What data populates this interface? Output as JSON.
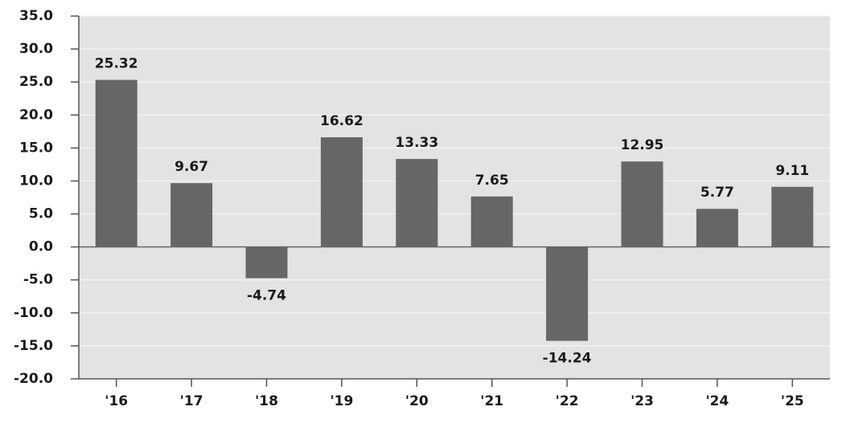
{
  "chart_data": {
    "type": "bar",
    "categories": [
      "'16",
      "'17",
      "'18",
      "'19",
      "'20",
      "'21",
      "'22",
      "'23",
      "'24",
      "'25"
    ],
    "values": [
      25.32,
      9.67,
      -4.74,
      16.62,
      13.33,
      7.65,
      -14.24,
      12.95,
      5.77,
      9.11
    ],
    "color": "#666666",
    "ylim": [
      -20,
      35
    ],
    "yticks": [
      {
        "value": -20,
        "label": "-20.0"
      },
      {
        "value": -15,
        "label": "-15.0"
      },
      {
        "value": -10,
        "label": "-10.0"
      },
      {
        "value": -5,
        "label": "-5.0"
      },
      {
        "value": 0,
        "label": "0.0"
      },
      {
        "value": 5,
        "label": "5.0"
      },
      {
        "value": 10,
        "label": "10.0"
      },
      {
        "value": 15,
        "label": "15.0"
      },
      {
        "value": 20,
        "label": "20.0"
      },
      {
        "value": 25,
        "label": "25.0"
      },
      {
        "value": 30,
        "label": "30.0"
      },
      {
        "value": 35,
        "label": "35.0"
      }
    ],
    "grid": true
  }
}
